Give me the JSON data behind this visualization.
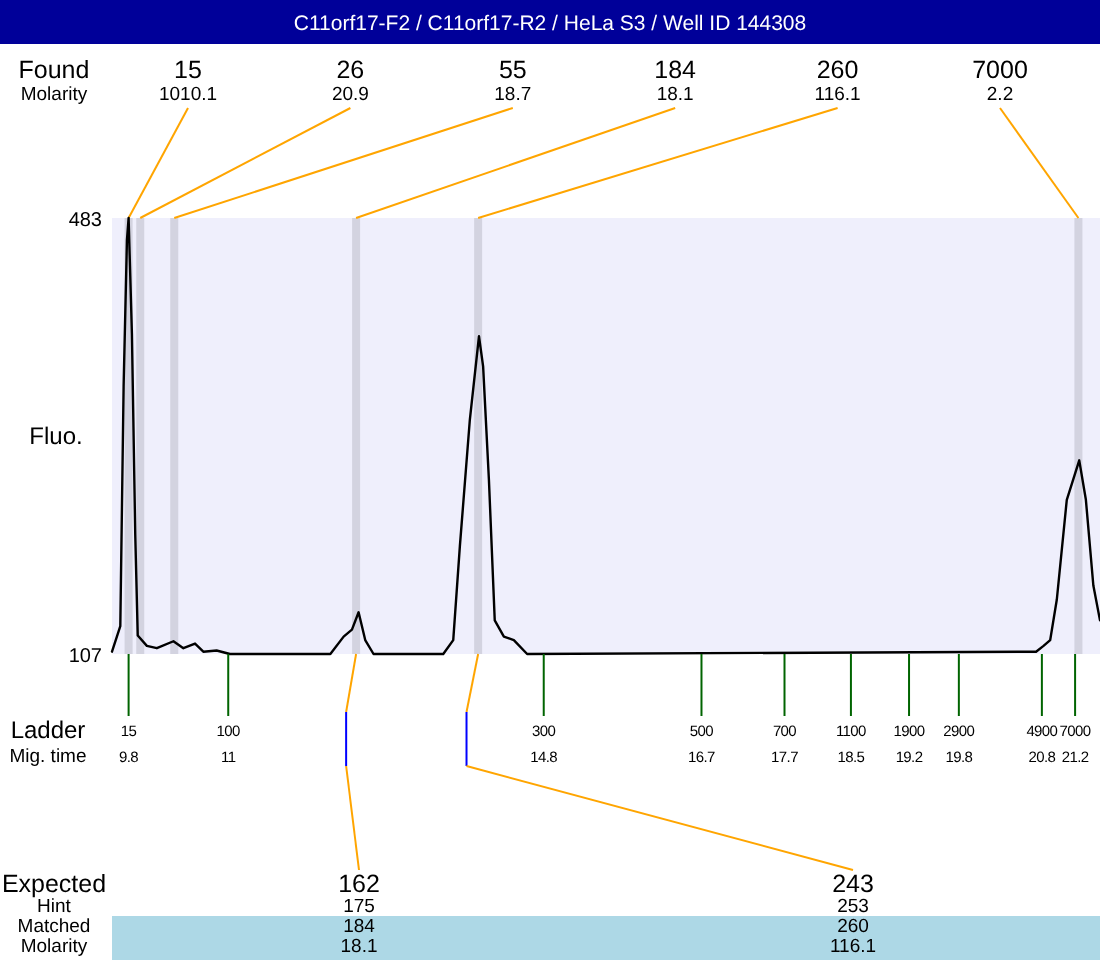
{
  "chart_data": {
    "type": "line",
    "title": "C11orf17-F2 / C11orf17-R2 / HeLa S3 / Well ID 144308",
    "ylabel": "Fluo.",
    "xlabel": "Mig. time",
    "xlim": [
      9.6,
      21.5
    ],
    "ylim": [
      107,
      483
    ],
    "yticks": [
      107,
      483
    ],
    "xticks": [
      9.8,
      11,
      14.8,
      16.7,
      17.7,
      18.5,
      19.2,
      19.8,
      20.8,
      21.2
    ],
    "series": [
      {
        "color": "#000000",
        "x": [
          9.6,
          9.7,
          9.74,
          9.78,
          9.8,
          9.84,
          9.88,
          9.91,
          10.02,
          10.14,
          10.34,
          10.46,
          10.6,
          10.7,
          10.86,
          11.02,
          12.23,
          12.39,
          12.49,
          12.57,
          12.65,
          12.75,
          13.59,
          13.71,
          13.79,
          13.91,
          14.02,
          14.07,
          14.14,
          14.21,
          14.32,
          14.44,
          14.6,
          20.73,
          20.82,
          20.9,
          20.98,
          21.1,
          21.25,
          21.33,
          21.42,
          21.5
        ],
        "values": [
          109,
          131,
          338,
          464,
          483,
          383,
          210,
          123,
          114,
          112,
          118,
          112,
          116,
          109,
          110,
          107,
          107,
          122,
          128,
          143,
          119,
          107,
          107,
          119,
          200,
          309,
          381,
          355,
          257,
          136,
          122,
          119,
          107,
          109,
          114,
          119,
          154,
          240,
          274,
          240,
          166,
          136
        ]
      }
    ],
    "ref_lines": [
      {
        "axis": "x",
        "value": 9.8,
        "color": "#d3d3e0"
      },
      {
        "axis": "x",
        "value": 9.94,
        "color": "#d3d3e0"
      },
      {
        "axis": "x",
        "value": 10.35,
        "color": "#d3d3e0"
      },
      {
        "axis": "x",
        "value": 12.54,
        "color": "#d3d3e0"
      },
      {
        "axis": "x",
        "value": 14.01,
        "color": "#d3d3e0"
      },
      {
        "axis": "x",
        "value": 21.24,
        "color": "#d3d3e0"
      }
    ],
    "annotations": [
      "Found\nMolarity",
      "Expected\nHint\nMatched\nMolarity",
      "Ladder",
      "15",
      "100",
      "300",
      "500",
      "700",
      "1100",
      "1900",
      "2900",
      "4900",
      "7000",
      {
        "text": "15\n1010.1",
        "x": 9.8
      },
      {
        "text": "26\n20.9",
        "x": 9.94
      },
      {
        "text": "55\n18.7",
        "x": 10.35
      },
      {
        "text": "184\n18.1",
        "x": 12.54
      },
      {
        "text": "260\n116.1",
        "x": 14.01
      },
      {
        "text": "7000\n2.2",
        "x": 21.24
      },
      {
        "text": "162\n175\n184\n18.1",
        "x": 12.42
      },
      {
        "text": "243\n253\n260\n116.1",
        "x": 13.87
      }
    ]
  }
}
